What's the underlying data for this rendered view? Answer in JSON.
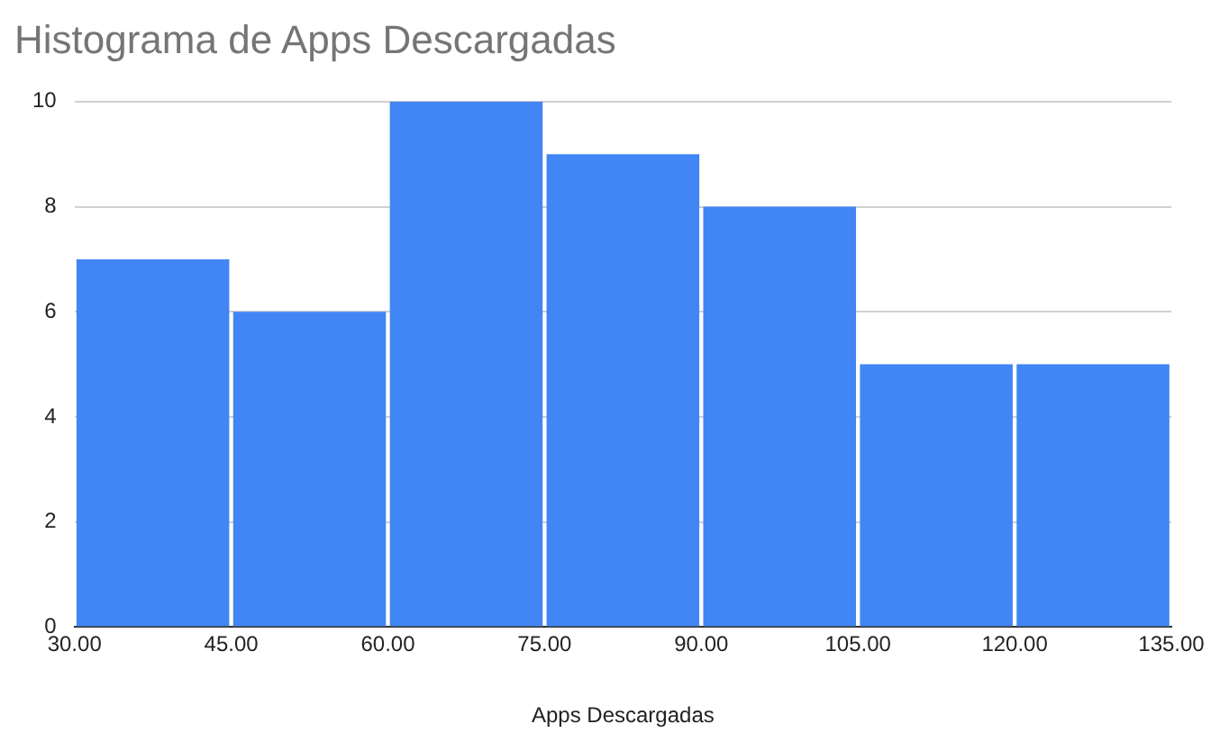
{
  "chart_data": {
    "type": "histogram",
    "title": "Histograma de Apps Descargadas",
    "xlabel": "Apps Descargadas",
    "bins": [
      30,
      45,
      60,
      75,
      90,
      105,
      120,
      135
    ],
    "values": [
      7,
      6,
      10,
      9,
      8,
      5,
      5
    ],
    "color": "#4285f4",
    "xlim": [
      30,
      135
    ],
    "xticks": [
      {
        "value": 30,
        "label": "30.00"
      },
      {
        "value": 45,
        "label": "45.00"
      },
      {
        "value": 60,
        "label": "60.00"
      },
      {
        "value": 75,
        "label": "75.00"
      },
      {
        "value": 90,
        "label": "90.00"
      },
      {
        "value": 105,
        "label": "105.00"
      },
      {
        "value": 120,
        "label": "120.00"
      },
      {
        "value": 135,
        "label": "135.00"
      }
    ],
    "ylim": [
      0,
      10
    ],
    "yticks": [
      0,
      2,
      4,
      6,
      8,
      10
    ],
    "grid": "y",
    "legend": false
  }
}
